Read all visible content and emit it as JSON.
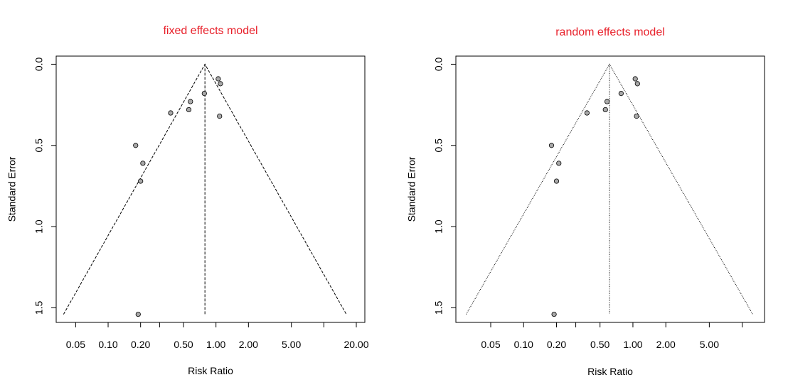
{
  "chart_data": [
    {
      "type": "scatter",
      "title": "fixed effects model",
      "xlabel": "Risk Ratio",
      "ylabel": "Standard Error",
      "x_scale": "log",
      "x_ticks": [
        {
          "value": 0.05,
          "label": "0.05"
        },
        {
          "value": 0.1,
          "label": "0.10"
        },
        {
          "value": 0.2,
          "label": "0.20"
        },
        {
          "value": 0.5,
          "label": "0.50"
        },
        {
          "value": 1.0,
          "label": "1.00"
        },
        {
          "value": 2.0,
          "label": "2.00"
        },
        {
          "value": 5.0,
          "label": "5.00"
        },
        {
          "value": 20.0,
          "label": "20.00"
        }
      ],
      "x_minor_ticks": [
        0.3,
        10.0
      ],
      "y_ticks": [
        {
          "value": 0.0,
          "label": "0.0"
        },
        {
          "value": 0.5,
          "label": "0.5"
        },
        {
          "value": 1.0,
          "label": "1.0"
        },
        {
          "value": 1.5,
          "label": "1.5"
        }
      ],
      "xlim": [
        0.033,
        24
      ],
      "ylim": [
        1.59,
        -0.05
      ],
      "y_reversed": true,
      "pooled_estimate": 0.79,
      "funnel_max_se": 1.54,
      "line_style": "dashed",
      "points": [
        {
          "x": 1.05,
          "y": 0.09
        },
        {
          "x": 1.1,
          "y": 0.12
        },
        {
          "x": 0.78,
          "y": 0.18
        },
        {
          "x": 0.58,
          "y": 0.23
        },
        {
          "x": 0.56,
          "y": 0.28
        },
        {
          "x": 0.38,
          "y": 0.3
        },
        {
          "x": 1.08,
          "y": 0.32
        },
        {
          "x": 0.18,
          "y": 0.5
        },
        {
          "x": 0.21,
          "y": 0.61
        },
        {
          "x": 0.2,
          "y": 0.72
        },
        {
          "x": 0.19,
          "y": 1.54
        }
      ]
    },
    {
      "type": "scatter",
      "title": "random effects model",
      "xlabel": "Risk Ratio",
      "ylabel": "Standard Error",
      "x_scale": "log",
      "x_ticks": [
        {
          "value": 0.05,
          "label": "0.05"
        },
        {
          "value": 0.1,
          "label": "0.10"
        },
        {
          "value": 0.2,
          "label": "0.20"
        },
        {
          "value": 0.5,
          "label": "0.50"
        },
        {
          "value": 1.0,
          "label": "1.00"
        },
        {
          "value": 2.0,
          "label": "2.00"
        },
        {
          "value": 5.0,
          "label": "5.00"
        }
      ],
      "x_minor_ticks": [
        0.3,
        10.0
      ],
      "y_ticks": [
        {
          "value": 0.0,
          "label": "0.0"
        },
        {
          "value": 0.5,
          "label": "0.5"
        },
        {
          "value": 1.0,
          "label": "1.0"
        },
        {
          "value": 1.5,
          "label": "1.5"
        }
      ],
      "xlim": [
        0.024,
        16
      ],
      "ylim": [
        1.59,
        -0.05
      ],
      "y_reversed": true,
      "pooled_estimate": 0.61,
      "funnel_max_se": 1.54,
      "line_style": "dotted",
      "points": [
        {
          "x": 1.05,
          "y": 0.09
        },
        {
          "x": 1.1,
          "y": 0.12
        },
        {
          "x": 0.78,
          "y": 0.18
        },
        {
          "x": 0.58,
          "y": 0.23
        },
        {
          "x": 0.56,
          "y": 0.28
        },
        {
          "x": 0.38,
          "y": 0.3
        },
        {
          "x": 1.08,
          "y": 0.32
        },
        {
          "x": 0.18,
          "y": 0.5
        },
        {
          "x": 0.21,
          "y": 0.61
        },
        {
          "x": 0.2,
          "y": 0.72
        },
        {
          "x": 0.19,
          "y": 1.54
        }
      ]
    }
  ]
}
